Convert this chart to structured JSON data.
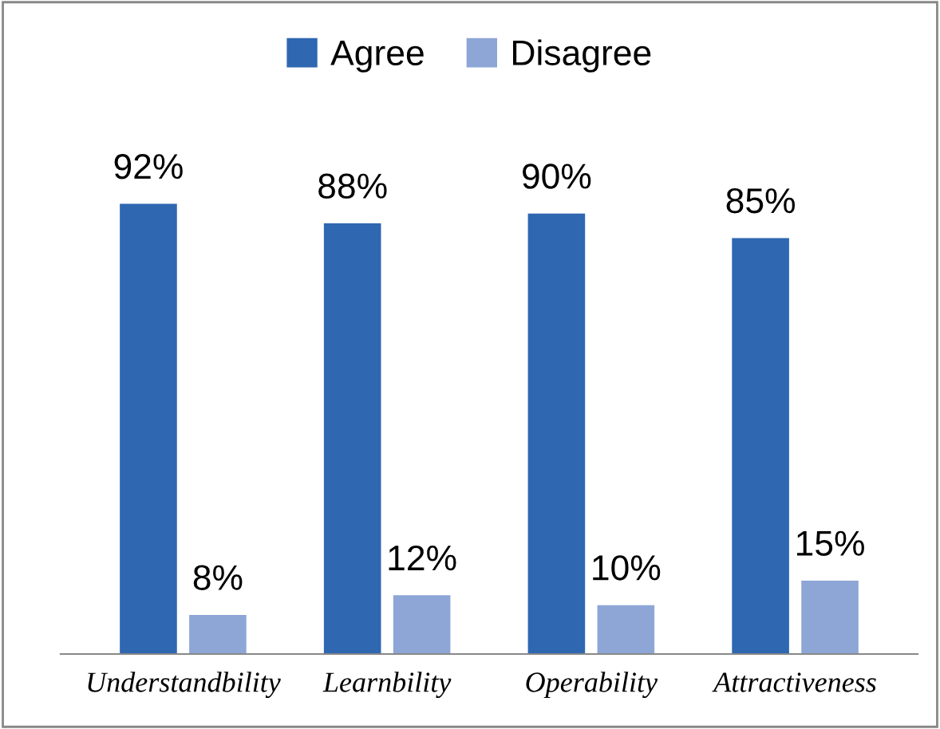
{
  "chart_data": {
    "type": "bar",
    "categories": [
      "Understandbility",
      "Learnbility",
      "Operability",
      "Attractiveness"
    ],
    "series": [
      {
        "name": "Agree",
        "color": "#2f67b1",
        "values": [
          92,
          88,
          90,
          85
        ],
        "value_labels": [
          "92%",
          "88%",
          "90%",
          "85%"
        ]
      },
      {
        "name": "Disagree",
        "color": "#8ea6d6",
        "values": [
          8,
          12,
          10,
          15
        ],
        "value_labels": [
          "8%",
          "12%",
          "10%",
          "15%"
        ]
      }
    ],
    "legend": "top",
    "grid": false
  }
}
